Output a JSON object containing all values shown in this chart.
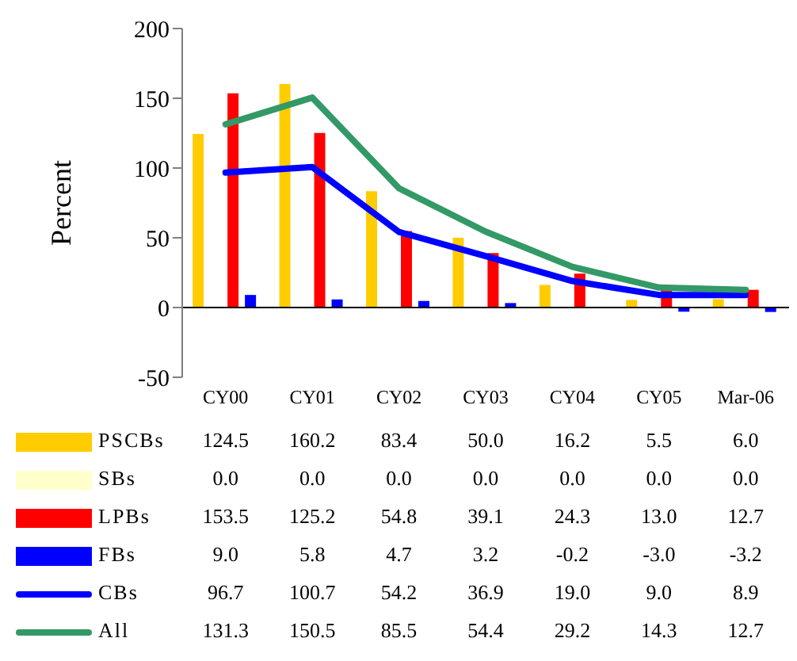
{
  "chart_data": {
    "type": "bar",
    "ylabel": "Percent",
    "categories": [
      "CY00",
      "CY01",
      "CY02",
      "CY03",
      "CY04",
      "CY05",
      "Mar-06"
    ],
    "ylim": [
      -50,
      200
    ],
    "yticks": [
      -50,
      0,
      50,
      100,
      150,
      200
    ],
    "legend": "bottom",
    "series": [
      {
        "name": "PSCBs",
        "color": "#ffcc00",
        "values": [
          124.5,
          160.2,
          83.4,
          50.0,
          16.2,
          5.5,
          6.0
        ],
        "value_labels": [
          "124.5",
          "160.2",
          "83.4",
          "50.0",
          "16.2",
          "5.5",
          "6.0"
        ]
      },
      {
        "name": "SBs",
        "color": "#ffffcc",
        "values": [
          0.0,
          0.0,
          0.0,
          0.0,
          0.0,
          0.0,
          0.0
        ],
        "value_labels": [
          "0.0",
          "0.0",
          "0.0",
          "0.0",
          "0.0",
          "0.0",
          "0.0"
        ]
      },
      {
        "name": "LPBs",
        "color": "#ff0000",
        "values": [
          153.5,
          125.2,
          54.8,
          39.1,
          24.3,
          13.0,
          12.7
        ],
        "value_labels": [
          "153.5",
          "125.2",
          "54.8",
          "39.1",
          "24.3",
          "13.0",
          "12.7"
        ]
      },
      {
        "name": "FBs",
        "color": "#0000ff",
        "values": [
          9.0,
          5.8,
          4.7,
          3.2,
          -0.2,
          -3.0,
          -3.2
        ],
        "value_labels": [
          "9.0",
          "5.8",
          "4.7",
          "3.2",
          "-0.2",
          "-3.0",
          "-3.2"
        ]
      },
      {
        "name": "CBs",
        "type": "line",
        "color": "#0000ff",
        "values": [
          96.7,
          100.7,
          54.2,
          36.9,
          19.0,
          9.0,
          8.9
        ],
        "value_labels": [
          "96.7",
          "100.7",
          "54.2",
          "36.9",
          "19.0",
          "9.0",
          "8.9"
        ]
      },
      {
        "name": "All",
        "type": "line",
        "color": "#339966",
        "values": [
          131.3,
          150.5,
          85.5,
          54.4,
          29.2,
          14.3,
          12.7
        ],
        "value_labels": [
          "131.3",
          "150.5",
          "85.5",
          "54.4",
          "29.2",
          "14.3",
          "12.7"
        ]
      }
    ]
  }
}
